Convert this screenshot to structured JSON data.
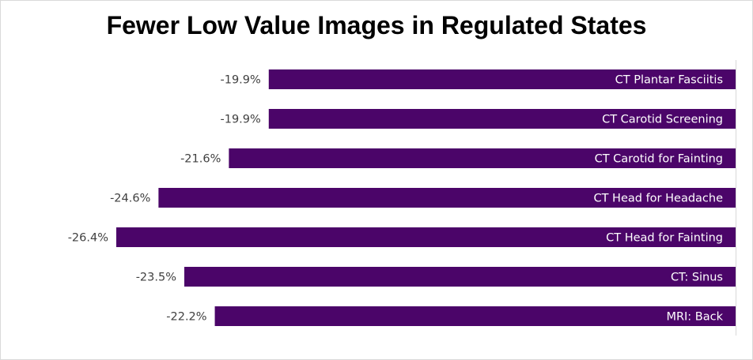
{
  "chart_data": {
    "type": "bar",
    "orientation": "horizontal",
    "title": "Fewer Low Value Images in Regulated States",
    "categories": [
      "CT Plantar Fasciitis",
      "CT Carotid Screening",
      "CT Carotid for Fainting",
      "CT Head for Headache",
      "CT Head for Fainting",
      "CT: Sinus",
      "MRI: Back"
    ],
    "values": [
      -19.9,
      -19.9,
      -21.6,
      -24.6,
      -26.4,
      -23.5,
      -22.2
    ],
    "value_labels": [
      "-19.9%",
      "-19.9%",
      "-21.6%",
      "-24.6%",
      "-26.4%",
      "-23.5%",
      "-22.2%"
    ],
    "xlim": [
      -26.4,
      0
    ],
    "grid": false,
    "legend": "none",
    "bar_color": "#4b0569"
  }
}
